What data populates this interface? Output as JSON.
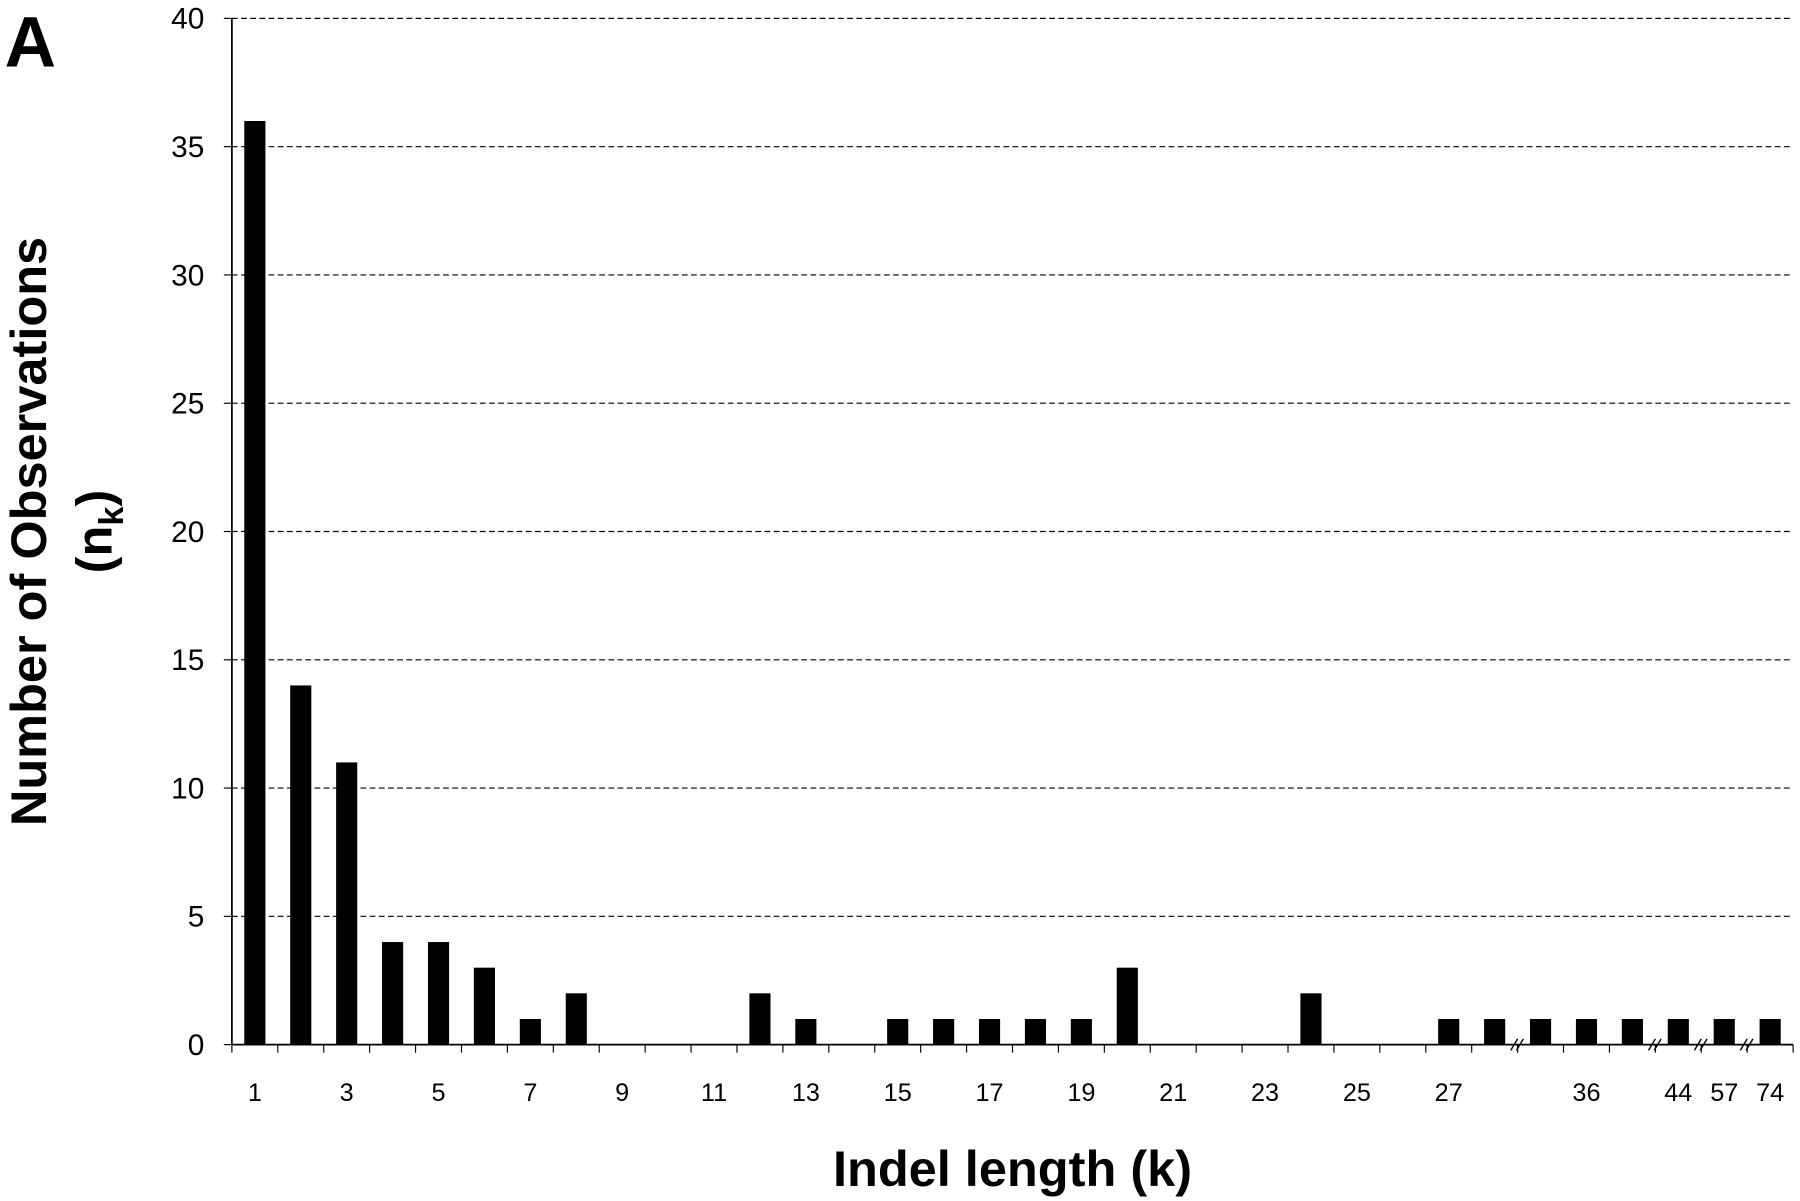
{
  "chart_data": {
    "type": "bar",
    "panel_label": "A",
    "y_label": "Number of Observations",
    "y_label_sub": {
      "open": "(n",
      "subscript": "k",
      "close": ")"
    },
    "x_label": "Indel length (k)",
    "categories": [
      1,
      null,
      3,
      null,
      5,
      null,
      7,
      null,
      9,
      null,
      11,
      null,
      13,
      null,
      15,
      null,
      17,
      null,
      19,
      null,
      21,
      null,
      23,
      null,
      25,
      null,
      27,
      null,
      null,
      36,
      null,
      44,
      57,
      74
    ],
    "values": [
      36,
      14,
      11,
      4,
      4,
      3,
      1,
      2,
      0,
      0,
      0,
      2,
      1,
      0,
      1,
      1,
      1,
      1,
      1,
      3,
      0,
      0,
      0,
      2,
      0,
      0,
      1,
      1,
      1,
      1,
      1,
      1,
      1,
      1
    ],
    "color": "#000000",
    "ylim": [
      0,
      40
    ],
    "yticks": [
      0,
      5,
      10,
      15,
      20,
      25,
      30,
      35,
      40
    ],
    "grid": true
  }
}
